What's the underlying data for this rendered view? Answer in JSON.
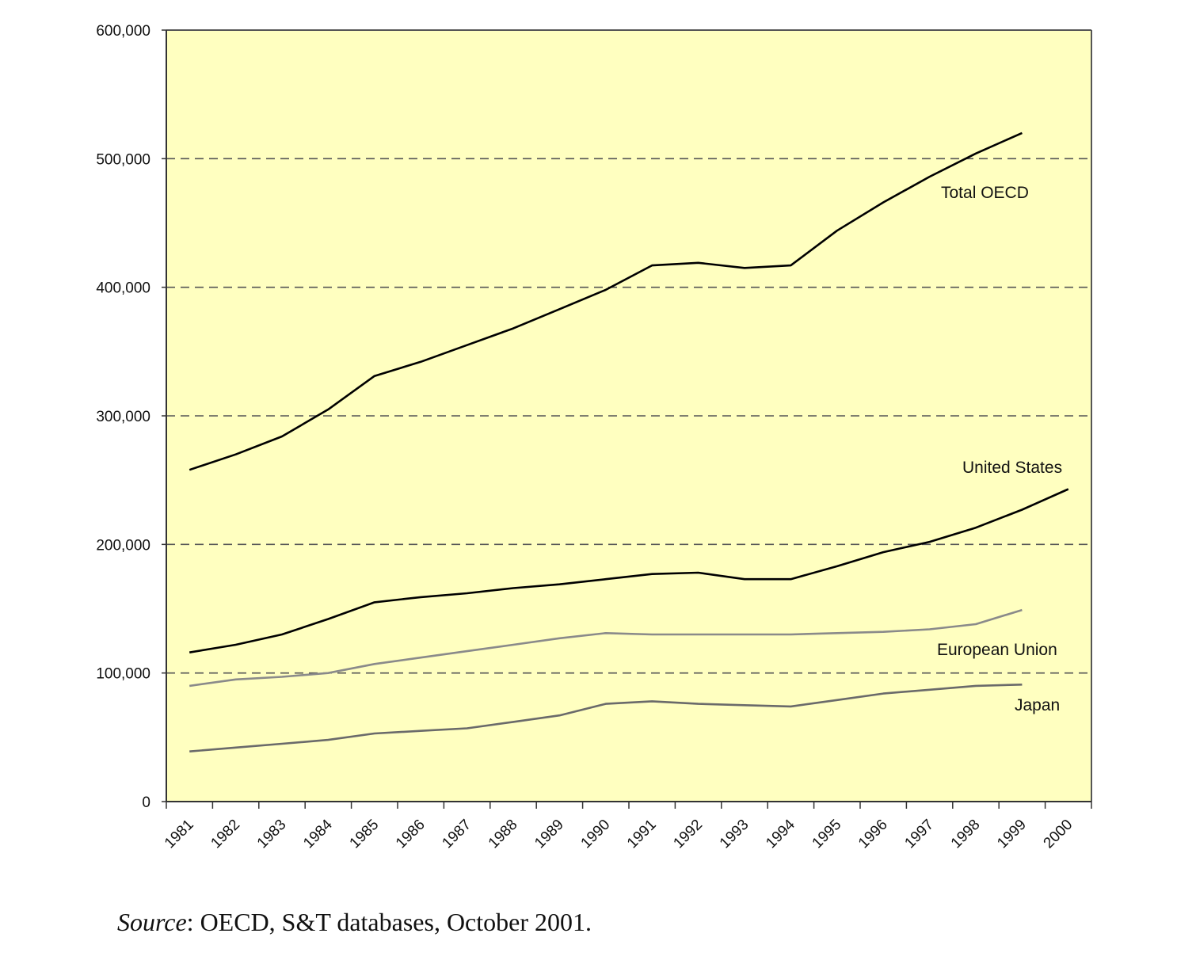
{
  "chart_data": {
    "type": "line",
    "title": "",
    "xlabel": "",
    "ylabel": "",
    "ylim": [
      0,
      600000
    ],
    "yticks": [
      {
        "value": 0,
        "label": "0"
      },
      {
        "value": 100000,
        "label": "100,000"
      },
      {
        "value": 200000,
        "label": "200,000"
      },
      {
        "value": 300000,
        "label": "300,000"
      },
      {
        "value": 400000,
        "label": "400,000"
      },
      {
        "value": 500000,
        "label": "500,000"
      },
      {
        "value": 600000,
        "label": "600,000"
      }
    ],
    "categories": [
      "1981",
      "1982",
      "1983",
      "1984",
      "1985",
      "1986",
      "1987",
      "1988",
      "1989",
      "1990",
      "1991",
      "1992",
      "1993",
      "1994",
      "1995",
      "1996",
      "1997",
      "1998",
      "1999",
      "2000"
    ],
    "grid": true,
    "grid_style": "dashed-horizontal",
    "background_color": "#ffffc0",
    "series": [
      {
        "name": "Total OECD",
        "color": "#000000",
        "values": [
          258000,
          270000,
          284000,
          305000,
          331000,
          342000,
          355000,
          368000,
          383000,
          398000,
          417000,
          419000,
          415000,
          417000,
          444000,
          466000,
          486000,
          504000,
          520000,
          null
        ]
      },
      {
        "name": "United States",
        "color": "#000000",
        "values": [
          116000,
          122000,
          130000,
          142000,
          155000,
          159000,
          162000,
          166000,
          169000,
          173000,
          177000,
          178000,
          173000,
          173000,
          183000,
          194000,
          202000,
          213000,
          227000,
          243000
        ]
      },
      {
        "name": "European Union",
        "color": "#8a8a8a",
        "values": [
          90000,
          95000,
          97000,
          100000,
          107000,
          112000,
          117000,
          122000,
          127000,
          131000,
          130000,
          130000,
          130000,
          130000,
          131000,
          132000,
          134000,
          138000,
          149000,
          null
        ]
      },
      {
        "name": "Japan",
        "color": "#6a6a6a",
        "values": [
          39000,
          42000,
          45000,
          48000,
          53000,
          55000,
          57000,
          62000,
          67000,
          76000,
          78000,
          76000,
          75000,
          74000,
          79000,
          84000,
          87000,
          90000,
          91000,
          null
        ]
      }
    ]
  },
  "source": {
    "label": "Source",
    "text": ": OECD, S&T databases, October 2001."
  }
}
